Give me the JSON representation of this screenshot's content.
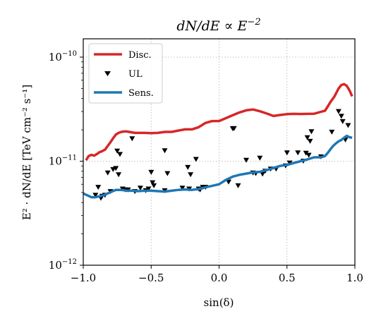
{
  "chart_data": {
    "type": "line",
    "title": "dN/dE ∝ E^-2",
    "title_parts": {
      "base": "dN/dE ∝ E",
      "sup": "−2"
    },
    "xlabel": "sin(δ)",
    "ylabel": "E² · dN/dE  [TeV cm⁻² s⁻¹]",
    "xlim": [
      -1.0,
      1.0
    ],
    "ylim": [
      1e-12,
      1.5e-10
    ],
    "yscale": "log",
    "grid": true,
    "legend_position": "upper-left",
    "x_ticks": [
      {
        "value": -1.0,
        "label": "−1.0"
      },
      {
        "value": -0.5,
        "label": "−0.5"
      },
      {
        "value": 0.0,
        "label": "0.0"
      },
      {
        "value": 0.5,
        "label": "0.5"
      },
      {
        "value": 1.0,
        "label": "1.0"
      }
    ],
    "y_ticks": [
      {
        "value": 1e-12,
        "base": "10",
        "exp": "−12"
      },
      {
        "value": 1e-11,
        "base": "10",
        "exp": "−11"
      },
      {
        "value": 1e-10,
        "base": "10",
        "exp": "−10"
      }
    ],
    "series": [
      {
        "name": "Disc.",
        "kind": "line",
        "color": "#d62728",
        "x": [
          -0.98,
          -0.96,
          -0.94,
          -0.92,
          -0.9,
          -0.88,
          -0.86,
          -0.84,
          -0.82,
          -0.8,
          -0.78,
          -0.76,
          -0.74,
          -0.72,
          -0.7,
          -0.68,
          -0.65,
          -0.62,
          -0.6,
          -0.55,
          -0.5,
          -0.45,
          -0.4,
          -0.35,
          -0.3,
          -0.25,
          -0.2,
          -0.15,
          -0.1,
          -0.05,
          0.0,
          0.05,
          0.1,
          0.15,
          0.2,
          0.25,
          0.3,
          0.35,
          0.4,
          0.45,
          0.5,
          0.55,
          0.6,
          0.65,
          0.7,
          0.75,
          0.78,
          0.8,
          0.82,
          0.85,
          0.88,
          0.9,
          0.92,
          0.94,
          0.96,
          0.98
        ],
        "values": [
          1.02e-11,
          1.12e-11,
          1.15e-11,
          1.13e-11,
          1.17e-11,
          1.22e-11,
          1.25e-11,
          1.29e-11,
          1.4e-11,
          1.52e-11,
          1.66e-11,
          1.8e-11,
          1.87e-11,
          1.91e-11,
          1.93e-11,
          1.93e-11,
          1.9e-11,
          1.87e-11,
          1.87e-11,
          1.87e-11,
          1.86e-11,
          1.87e-11,
          1.91e-11,
          1.91e-11,
          1.97e-11,
          2.02e-11,
          2.02e-11,
          2.12e-11,
          2.33e-11,
          2.43e-11,
          2.43e-11,
          2.59e-11,
          2.76e-11,
          2.94e-11,
          3.08e-11,
          3.14e-11,
          3.02e-11,
          2.87e-11,
          2.72e-11,
          2.78e-11,
          2.83e-11,
          2.85e-11,
          2.84e-11,
          2.85e-11,
          2.86e-11,
          2.98e-11,
          3.05e-11,
          3.35e-11,
          3.7e-11,
          4.2e-11,
          5e-11,
          5.4e-11,
          5.5e-11,
          5.3e-11,
          4.8e-11,
          4.2e-11
        ]
      },
      {
        "name": "UL",
        "kind": "markers",
        "color": "#000000",
        "x": [
          -0.91,
          -0.89,
          -0.87,
          -0.86,
          -0.84,
          -0.82,
          -0.8,
          -0.78,
          -0.76,
          -0.75,
          -0.74,
          -0.73,
          -0.71,
          -0.69,
          -0.67,
          -0.64,
          -0.62,
          -0.58,
          -0.54,
          -0.52,
          -0.5,
          -0.49,
          -0.48,
          -0.4,
          -0.4,
          -0.38,
          -0.27,
          -0.23,
          -0.22,
          -0.21,
          -0.17,
          -0.15,
          -0.14,
          -0.12,
          -0.1,
          0.07,
          0.1,
          0.11,
          0.14,
          0.2,
          0.25,
          0.27,
          0.3,
          0.32,
          0.34,
          0.38,
          0.42,
          0.49,
          0.5,
          0.52,
          0.58,
          0.62,
          0.64,
          0.65,
          0.66,
          0.67,
          0.68,
          0.75,
          0.83,
          0.88,
          0.9,
          0.91,
          0.93,
          0.95
        ],
        "values": [
          4.7e-12,
          5.6e-12,
          4.4e-12,
          4.6e-12,
          4.7e-12,
          7.7e-12,
          5.1e-12,
          8.3e-12,
          8.5e-12,
          1.25e-11,
          7.4e-12,
          1.16e-11,
          5.4e-12,
          5.3e-12,
          5.3e-12,
          1.64e-11,
          5.1e-12,
          5.5e-12,
          5.2e-12,
          5.4e-12,
          7.8e-12,
          6.2e-12,
          5.8e-12,
          5.2e-12,
          1.26e-11,
          7.6e-12,
          5.5e-12,
          8.7e-12,
          5.4e-12,
          7.4e-12,
          1.04e-11,
          5.4e-12,
          5.3e-12,
          5.6e-12,
          5.6e-12,
          6.3e-12,
          2.05e-11,
          2.06e-11,
          5.8e-12,
          1.02e-11,
          7.7e-12,
          7.6e-12,
          1.07e-11,
          7.5e-12,
          8e-12,
          8.4e-12,
          8.4e-12,
          9e-12,
          1.2e-11,
          9.6e-12,
          1.2e-11,
          1e-11,
          1.19e-11,
          1.68e-11,
          1.14e-11,
          1.55e-11,
          1.92e-11,
          1.1e-11,
          1.9e-11,
          3e-11,
          2.7e-11,
          2.4e-11,
          1.6e-11,
          2.2e-11
        ]
      },
      {
        "name": "Sens.",
        "kind": "line",
        "color": "#1f77b4",
        "x": [
          -1.0,
          -0.97,
          -0.94,
          -0.91,
          -0.88,
          -0.85,
          -0.82,
          -0.79,
          -0.76,
          -0.72,
          -0.68,
          -0.64,
          -0.6,
          -0.55,
          -0.5,
          -0.45,
          -0.4,
          -0.35,
          -0.3,
          -0.25,
          -0.2,
          -0.15,
          -0.1,
          -0.05,
          0.0,
          0.05,
          0.1,
          0.15,
          0.2,
          0.25,
          0.3,
          0.35,
          0.4,
          0.45,
          0.5,
          0.55,
          0.6,
          0.65,
          0.7,
          0.75,
          0.78,
          0.8,
          0.82,
          0.84,
          0.86,
          0.88,
          0.9,
          0.92,
          0.94,
          0.96,
          0.98
        ],
        "values": [
          4.9e-12,
          4.7e-12,
          4.5e-12,
          4.5e-12,
          4.6e-12,
          4.7e-12,
          4.9e-12,
          5.1e-12,
          5.3e-12,
          5.3e-12,
          5.2e-12,
          5.2e-12,
          5.15e-12,
          5.2e-12,
          5.2e-12,
          5.15e-12,
          5.1e-12,
          5.2e-12,
          5.3e-12,
          5.35e-12,
          5.3e-12,
          5.4e-12,
          5.6e-12,
          5.8e-12,
          6e-12,
          6.6e-12,
          7.1e-12,
          7.4e-12,
          7.6e-12,
          7.8e-12,
          7.9e-12,
          8.2e-12,
          8.6e-12,
          9e-12,
          9.2e-12,
          9.6e-12,
          1e-11,
          1.04e-11,
          1.09e-11,
          1.09e-11,
          1.12e-11,
          1.2e-11,
          1.3e-11,
          1.4e-11,
          1.48e-11,
          1.55e-11,
          1.6e-11,
          1.68e-11,
          1.75e-11,
          1.7e-11,
          1.68e-11
        ]
      }
    ]
  }
}
